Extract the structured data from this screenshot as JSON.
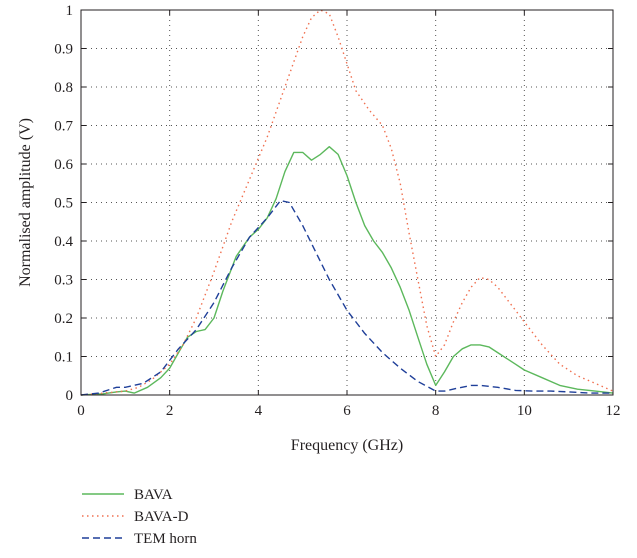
{
  "chart_data": {
    "type": "line",
    "title": "",
    "xlabel": "Frequency (GHz)",
    "ylabel": "Normalised amplitude (V)",
    "xlim": [
      0,
      12
    ],
    "ylim": [
      0,
      1
    ],
    "xticks": [
      0,
      2,
      4,
      6,
      8,
      10,
      12
    ],
    "yticks": [
      0,
      0.1,
      0.2,
      0.3,
      0.4,
      0.5,
      0.6,
      0.7,
      0.8,
      0.9,
      1
    ],
    "xtick_labels": [
      "0",
      "2",
      "4",
      "6",
      "8",
      "10",
      "12"
    ],
    "ytick_labels": [
      "0",
      "0.1",
      "0.2",
      "0.3",
      "0.4",
      "0.5",
      "0.6",
      "0.7",
      "0.8",
      "0.9",
      "1"
    ],
    "grid": "dotted",
    "legend_position": "below",
    "series": [
      {
        "name": "BAVA",
        "color": "#5cb85c",
        "dash": "solid",
        "x": [
          0,
          0.5,
          0.8,
          1.0,
          1.2,
          1.5,
          1.8,
          2.0,
          2.2,
          2.4,
          2.6,
          2.8,
          3.0,
          3.2,
          3.5,
          3.8,
          4.0,
          4.2,
          4.4,
          4.6,
          4.8,
          5.0,
          5.2,
          5.4,
          5.6,
          5.8,
          6.0,
          6.2,
          6.4,
          6.6,
          6.8,
          7.0,
          7.2,
          7.4,
          7.6,
          7.8,
          8.0,
          8.2,
          8.4,
          8.6,
          8.8,
          9.0,
          9.2,
          9.4,
          9.6,
          9.8,
          10.0,
          10.4,
          10.8,
          11.2,
          11.6,
          12.0
        ],
        "y": [
          0.0,
          0.003,
          0.008,
          0.01,
          0.005,
          0.02,
          0.045,
          0.07,
          0.11,
          0.15,
          0.165,
          0.17,
          0.2,
          0.27,
          0.36,
          0.41,
          0.43,
          0.46,
          0.51,
          0.58,
          0.63,
          0.63,
          0.61,
          0.625,
          0.645,
          0.625,
          0.57,
          0.5,
          0.44,
          0.4,
          0.37,
          0.33,
          0.28,
          0.22,
          0.15,
          0.08,
          0.025,
          0.06,
          0.1,
          0.12,
          0.13,
          0.13,
          0.125,
          0.11,
          0.095,
          0.08,
          0.065,
          0.045,
          0.025,
          0.015,
          0.01,
          0.005
        ]
      },
      {
        "name": "BAVA-D",
        "color": "#f07050",
        "dash": "dotted",
        "x": [
          0,
          0.5,
          1.0,
          1.3,
          1.6,
          2.0,
          2.3,
          2.6,
          3.0,
          3.4,
          3.8,
          4.2,
          4.6,
          5.0,
          5.2,
          5.4,
          5.6,
          5.8,
          6.0,
          6.2,
          6.5,
          6.8,
          7.0,
          7.2,
          7.4,
          7.6,
          7.8,
          8.0,
          8.2,
          8.4,
          8.6,
          8.8,
          9.0,
          9.2,
          9.4,
          9.6,
          9.8,
          10.0,
          10.4,
          10.8,
          11.2,
          11.6,
          12.0
        ],
        "y": [
          0.0,
          0.005,
          0.01,
          0.02,
          0.04,
          0.08,
          0.13,
          0.2,
          0.32,
          0.45,
          0.56,
          0.67,
          0.8,
          0.93,
          0.98,
          1.0,
          0.99,
          0.93,
          0.86,
          0.79,
          0.74,
          0.7,
          0.64,
          0.55,
          0.42,
          0.3,
          0.18,
          0.1,
          0.13,
          0.19,
          0.24,
          0.28,
          0.305,
          0.3,
          0.28,
          0.25,
          0.22,
          0.19,
          0.13,
          0.08,
          0.05,
          0.03,
          0.01
        ]
      },
      {
        "name": "TEM horn",
        "color": "#1f3f99",
        "dash": "dashed",
        "x": [
          0,
          0.4,
          0.8,
          1.0,
          1.4,
          1.8,
          2.2,
          2.6,
          3.0,
          3.4,
          3.8,
          4.2,
          4.5,
          4.7,
          5.0,
          5.3,
          5.6,
          6.0,
          6.4,
          6.8,
          7.2,
          7.6,
          8.0,
          8.2,
          8.5,
          8.8,
          9.0,
          9.4,
          9.8,
          10.2,
          10.6,
          11.0,
          11.5,
          12.0
        ],
        "y": [
          0.0,
          0.005,
          0.02,
          0.02,
          0.03,
          0.06,
          0.12,
          0.17,
          0.24,
          0.33,
          0.41,
          0.46,
          0.505,
          0.5,
          0.44,
          0.37,
          0.3,
          0.22,
          0.16,
          0.11,
          0.07,
          0.035,
          0.01,
          0.01,
          0.018,
          0.025,
          0.025,
          0.02,
          0.012,
          0.01,
          0.01,
          0.008,
          0.005,
          0.005
        ]
      }
    ]
  }
}
